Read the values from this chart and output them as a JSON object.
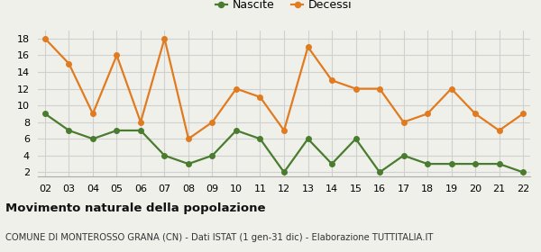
{
  "years": [
    "02",
    "03",
    "04",
    "05",
    "06",
    "07",
    "08",
    "09",
    "10",
    "11",
    "12",
    "13",
    "14",
    "15",
    "16",
    "17",
    "18",
    "19",
    "20",
    "21",
    "22"
  ],
  "nascite": [
    9,
    7,
    6,
    7,
    7,
    4,
    3,
    4,
    7,
    6,
    2,
    6,
    3,
    6,
    2,
    4,
    3,
    3,
    3,
    3,
    2
  ],
  "decessi": [
    18,
    15,
    9,
    16,
    8,
    18,
    6,
    8,
    12,
    11,
    7,
    17,
    13,
    12,
    12,
    8,
    9,
    12,
    9,
    7,
    9
  ],
  "nascite_color": "#4a7c2f",
  "decessi_color": "#e07b20",
  "title": "Movimento naturale della popolazione",
  "subtitle": "COMUNE DI MONTEROSSO GRANA (CN) - Dati ISTAT (1 gen-31 dic) - Elaborazione TUTTITALIA.IT",
  "ylim_min": 1.5,
  "ylim_max": 19,
  "yticks": [
    2,
    4,
    6,
    8,
    10,
    12,
    14,
    16,
    18
  ],
  "legend_nascite": "Nascite",
  "legend_decessi": "Decessi",
  "bg_color": "#f0f0eb",
  "grid_color": "#d0d0d0"
}
